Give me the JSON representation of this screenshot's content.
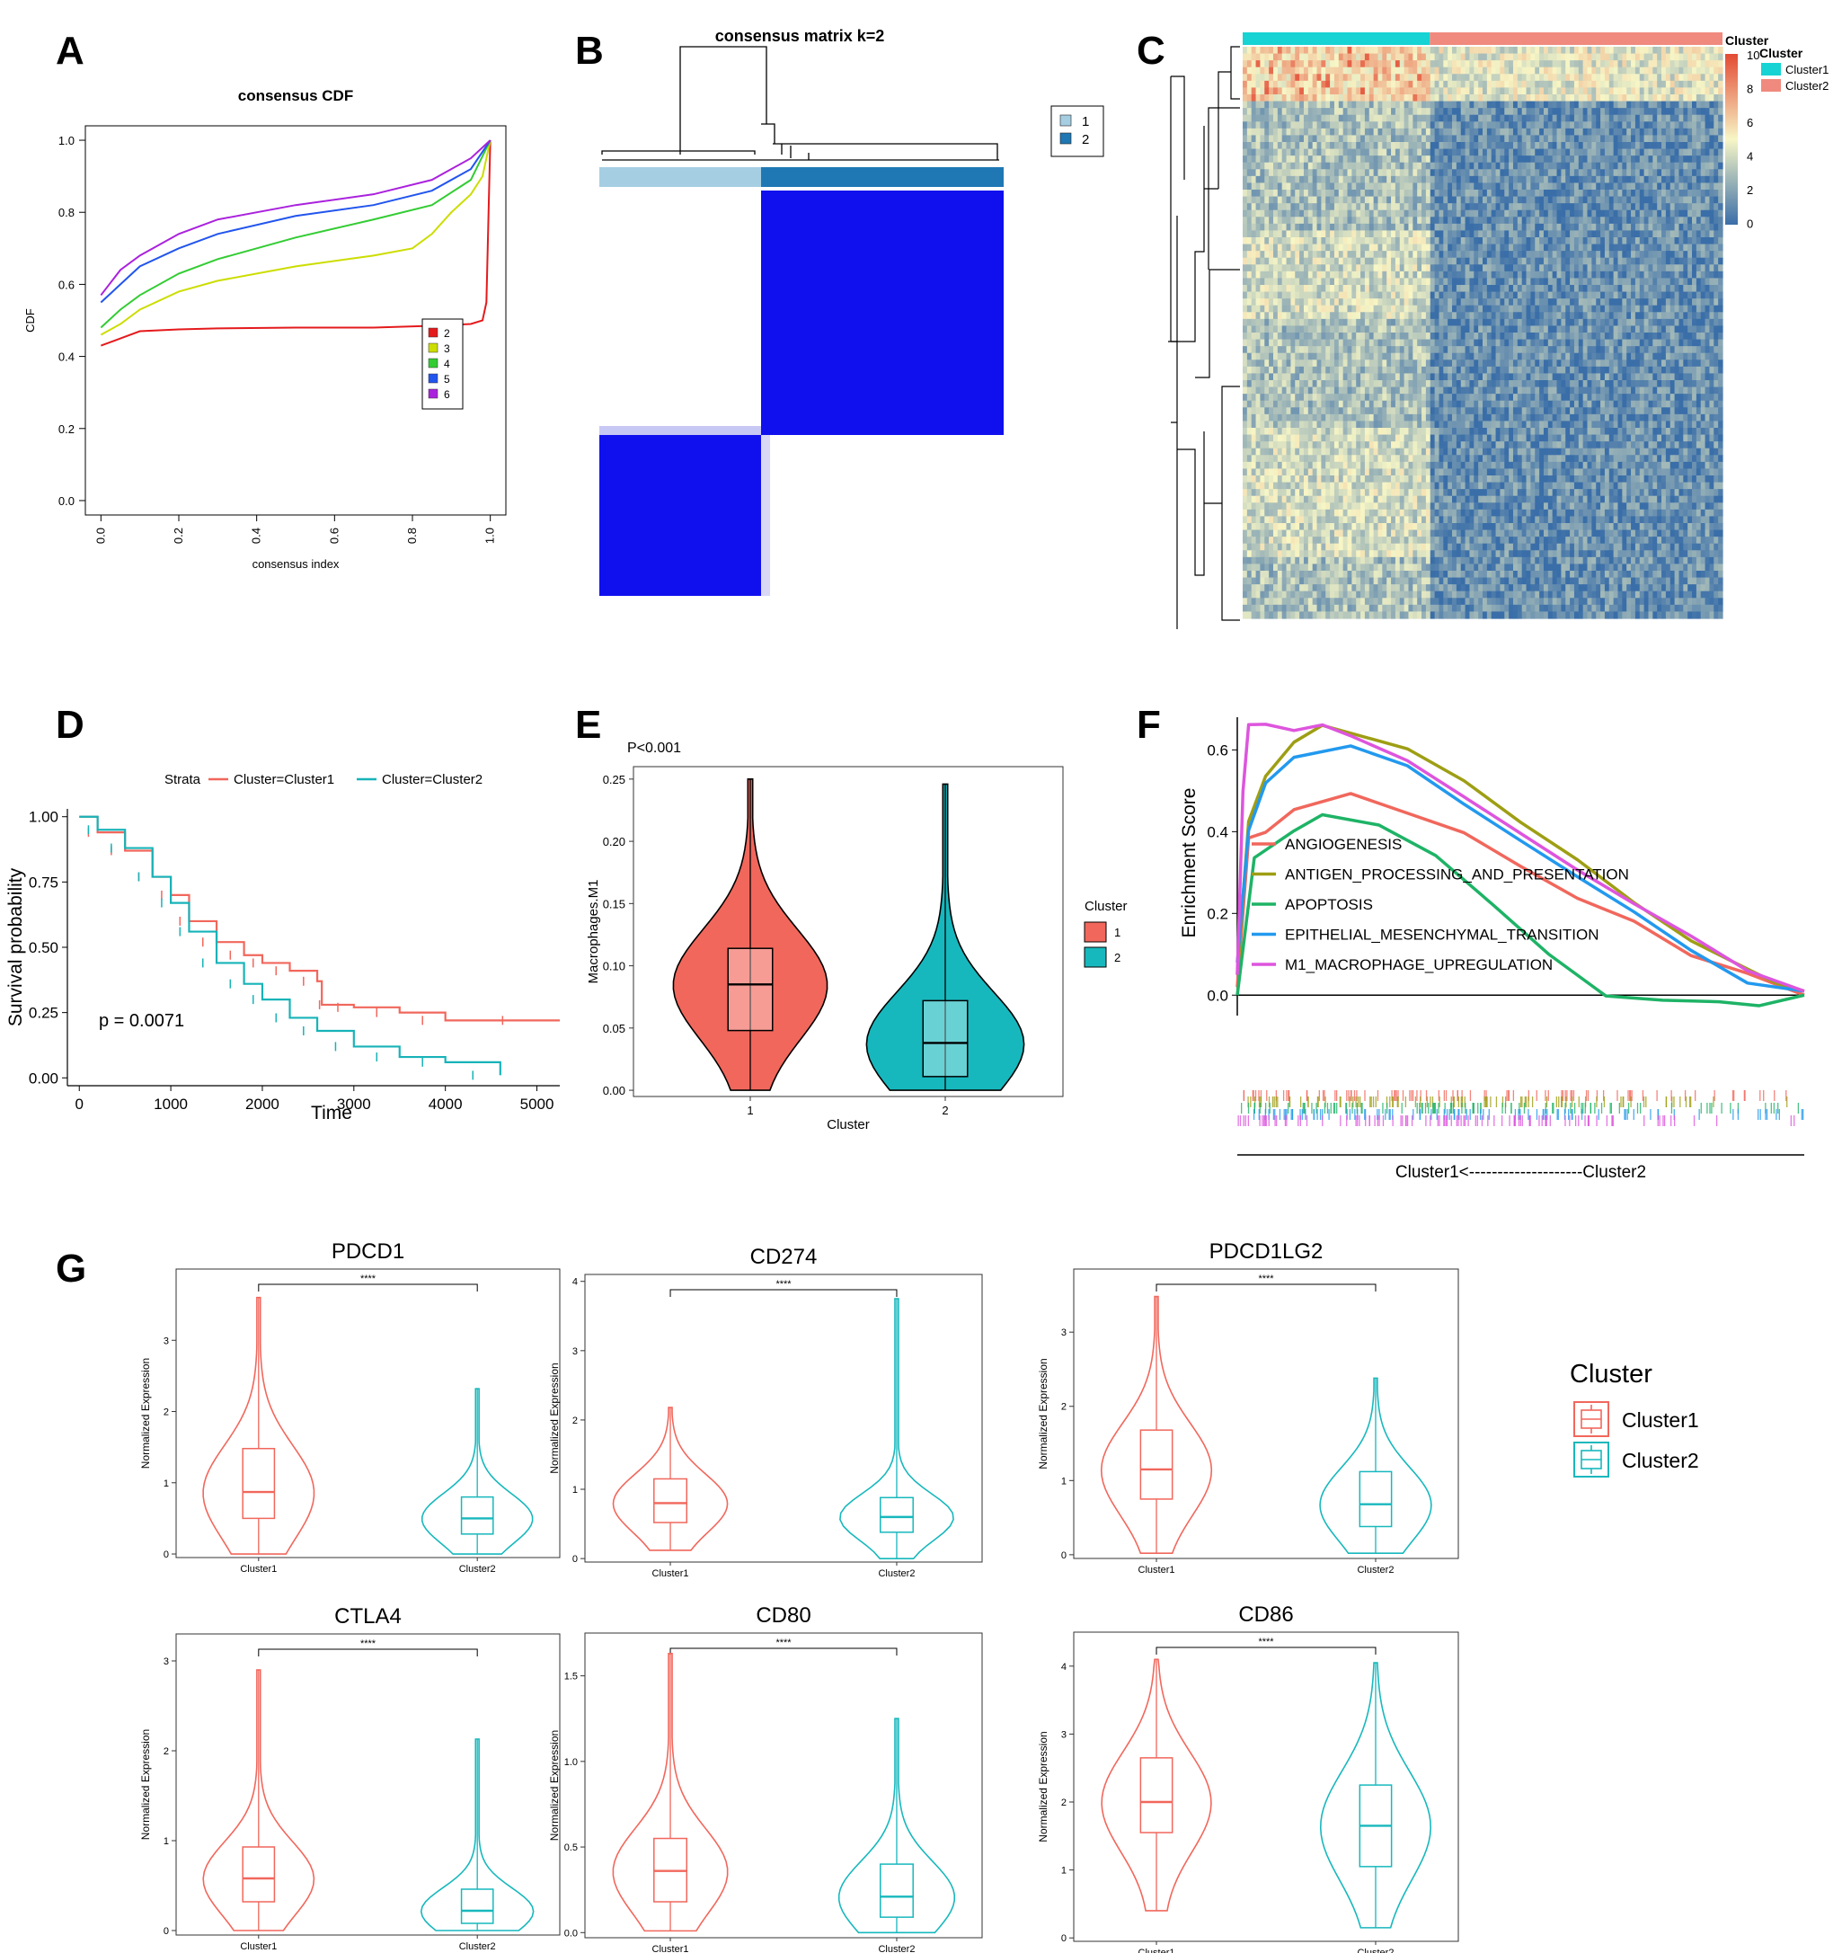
{
  "panel_labels": [
    "A",
    "B",
    "C",
    "D",
    "E",
    "F",
    "G"
  ],
  "chart_data": [
    {
      "panel": "A",
      "type": "line",
      "title": "consensus CDF",
      "xlabel": "consensus index",
      "ylabel": "CDF",
      "xlim": [
        0,
        1
      ],
      "ylim": [
        0,
        1
      ],
      "xticks": [
        "0.0",
        "0.2",
        "0.4",
        "0.6",
        "0.8",
        "1.0"
      ],
      "yticks": [
        "0.0",
        "0.2",
        "0.4",
        "0.6",
        "0.8",
        "1.0"
      ],
      "legend_position": "right",
      "series": [
        {
          "name": "2",
          "color": "#e41a1c",
          "x": [
            0,
            0.05,
            0.1,
            0.2,
            0.3,
            0.5,
            0.7,
            0.85,
            0.95,
            0.98,
            0.99,
            1.0
          ],
          "y": [
            0.43,
            0.45,
            0.47,
            0.475,
            0.478,
            0.48,
            0.48,
            0.485,
            0.49,
            0.5,
            0.55,
            1.0
          ]
        },
        {
          "name": "3",
          "color": "#ccdd00",
          "x": [
            0,
            0.05,
            0.1,
            0.2,
            0.3,
            0.5,
            0.7,
            0.8,
            0.85,
            0.9,
            0.95,
            0.98,
            1.0
          ],
          "y": [
            0.46,
            0.49,
            0.53,
            0.58,
            0.61,
            0.65,
            0.68,
            0.7,
            0.74,
            0.8,
            0.85,
            0.9,
            1.0
          ]
        },
        {
          "name": "4",
          "color": "#33cc33",
          "x": [
            0,
            0.05,
            0.1,
            0.2,
            0.3,
            0.5,
            0.7,
            0.85,
            0.95,
            1.0
          ],
          "y": [
            0.48,
            0.53,
            0.57,
            0.63,
            0.67,
            0.73,
            0.78,
            0.82,
            0.89,
            1.0
          ]
        },
        {
          "name": "5",
          "color": "#2255ee",
          "x": [
            0,
            0.05,
            0.1,
            0.2,
            0.3,
            0.5,
            0.7,
            0.85,
            0.95,
            1.0
          ],
          "y": [
            0.55,
            0.6,
            0.65,
            0.7,
            0.74,
            0.79,
            0.82,
            0.86,
            0.92,
            1.0
          ]
        },
        {
          "name": "6",
          "color": "#aa22dd",
          "x": [
            0,
            0.05,
            0.1,
            0.2,
            0.3,
            0.5,
            0.7,
            0.85,
            0.95,
            1.0
          ],
          "y": [
            0.57,
            0.64,
            0.68,
            0.74,
            0.78,
            0.82,
            0.85,
            0.89,
            0.95,
            1.0
          ]
        }
      ]
    },
    {
      "panel": "B",
      "type": "heatmap",
      "title": "consensus matrix k=2",
      "legend": [
        {
          "name": "1",
          "color": "#a6cee3"
        },
        {
          "name": "2",
          "color": "#1f78b4"
        }
      ],
      "clusters": [
        {
          "name": "1",
          "fraction": 0.4
        },
        {
          "name": "2",
          "fraction": 0.6
        }
      ],
      "block_color": "#1010ee"
    },
    {
      "panel": "C",
      "type": "heatmap",
      "legend_title": "Cluster",
      "annotation_title": "Cluster",
      "annotation": [
        {
          "name": "Cluster1",
          "color": "#17d3d3"
        },
        {
          "name": "Cluster2",
          "color": "#f08a7e"
        }
      ],
      "cluster1_fraction": 0.39,
      "colorbar_ticks": [
        "10",
        "8",
        "6",
        "4",
        "2",
        "0"
      ],
      "colorbar_range": [
        0,
        10
      ],
      "colors": {
        "low": "#3a6ea8",
        "mid": "#f7f6c6",
        "high": "#e34a33"
      }
    },
    {
      "panel": "D",
      "type": "line",
      "xlabel": "Time",
      "ylabel": "Survival probability",
      "legend_title": "Strata",
      "annotation": "p = 0.0071",
      "xticks": [
        "0",
        "1000",
        "2000",
        "3000",
        "4000",
        "5000"
      ],
      "yticks": [
        "0.00",
        "0.25",
        "0.50",
        "0.75",
        "1.00"
      ],
      "xlim": [
        0,
        5250
      ],
      "ylim": [
        0,
        1
      ],
      "series": [
        {
          "name": "Cluster=Cluster1",
          "color": "#f1675c",
          "x": [
            0,
            200,
            500,
            800,
            1000,
            1200,
            1500,
            1800,
            2000,
            2300,
            2600,
            2650,
            3000,
            3500,
            4000,
            5250
          ],
          "y": [
            1.0,
            0.94,
            0.87,
            0.77,
            0.7,
            0.6,
            0.52,
            0.47,
            0.44,
            0.41,
            0.37,
            0.28,
            0.27,
            0.25,
            0.22,
            0.22
          ]
        },
        {
          "name": "Cluster=Cluster2",
          "color": "#17b3b8",
          "x": [
            0,
            200,
            500,
            800,
            1000,
            1200,
            1500,
            1800,
            2000,
            2300,
            2600,
            3000,
            3500,
            4000,
            4600
          ],
          "y": [
            1.0,
            0.95,
            0.88,
            0.77,
            0.67,
            0.56,
            0.44,
            0.36,
            0.3,
            0.23,
            0.18,
            0.12,
            0.08,
            0.06,
            0.01
          ]
        }
      ]
    },
    {
      "panel": "E",
      "type": "violin",
      "annotation": "P<0.001",
      "xlabel": "Cluster",
      "ylabel": "Macrophages.M1",
      "legend_title": "Cluster",
      "categories": [
        "1",
        "2"
      ],
      "ylim": [
        -0.005,
        0.26
      ],
      "yticks": [
        "0.00",
        "0.05",
        "0.10",
        "0.15",
        "0.20",
        "0.25"
      ],
      "groups": [
        {
          "name": "1",
          "color": "#f1675c",
          "min": 0.0,
          "q1": 0.048,
          "median": 0.085,
          "q3": 0.114,
          "max": 0.25
        },
        {
          "name": "2",
          "color": "#17b8bd",
          "min": 0.0,
          "q1": 0.011,
          "median": 0.038,
          "q3": 0.072,
          "max": 0.246
        }
      ]
    },
    {
      "panel": "F",
      "type": "line",
      "ylabel": "Enrichment Score",
      "xlabel": "Cluster1<--------------------Cluster2",
      "ylim": [
        -0.05,
        0.68
      ],
      "yticks": [
        "0.0",
        "0.2",
        "0.4",
        "0.6"
      ],
      "series": [
        {
          "name": "ANGIOGENESIS",
          "color": "#f1675c",
          "x": [
            0,
            0.02,
            0.05,
            0.1,
            0.2,
            0.3,
            0.4,
            0.5,
            0.6,
            0.7,
            0.8,
            0.9,
            1.0
          ],
          "y": [
            0.02,
            0.38,
            0.4,
            0.45,
            0.49,
            0.45,
            0.4,
            0.32,
            0.24,
            0.18,
            0.1,
            0.05,
            0.0
          ]
        },
        {
          "name": "ANTIGEN_PROCESSING_AND_PRESENTATION",
          "color": "#9e9e14",
          "x": [
            0,
            0.02,
            0.05,
            0.1,
            0.15,
            0.3,
            0.4,
            0.5,
            0.6,
            0.7,
            0.8,
            0.9,
            0.95,
            1.0
          ],
          "y": [
            0.05,
            0.42,
            0.54,
            0.62,
            0.66,
            0.6,
            0.52,
            0.42,
            0.33,
            0.23,
            0.13,
            0.06,
            0.03,
            0.01
          ]
        },
        {
          "name": "APOPTOSIS",
          "color": "#1eb366",
          "x": [
            0,
            0.03,
            0.1,
            0.15,
            0.25,
            0.35,
            0.45,
            0.55,
            0.65,
            0.75,
            0.85,
            0.92,
            1.0
          ],
          "y": [
            0.0,
            0.34,
            0.4,
            0.44,
            0.42,
            0.34,
            0.22,
            0.1,
            0.0,
            -0.01,
            -0.02,
            -0.03,
            0.0
          ]
        },
        {
          "name": "EPITHELIAL_MESENCHYMAL_TRANSITION",
          "color": "#2299ee",
          "x": [
            0,
            0.02,
            0.05,
            0.1,
            0.2,
            0.3,
            0.4,
            0.5,
            0.6,
            0.7,
            0.8,
            0.9,
            1.0
          ],
          "y": [
            0.08,
            0.4,
            0.52,
            0.58,
            0.61,
            0.56,
            0.47,
            0.38,
            0.29,
            0.2,
            0.11,
            0.03,
            0.01
          ]
        },
        {
          "name": "M1_MACROPHAGE_UPREGULATION",
          "color": "#dd55dd",
          "x": [
            0,
            0.01,
            0.02,
            0.05,
            0.1,
            0.15,
            0.2,
            0.3,
            0.4,
            0.5,
            0.6,
            0.7,
            0.8,
            0.9,
            1.0
          ],
          "y": [
            0.05,
            0.5,
            0.66,
            0.66,
            0.65,
            0.66,
            0.63,
            0.57,
            0.49,
            0.4,
            0.31,
            0.22,
            0.14,
            0.06,
            0.01
          ]
        }
      ]
    },
    {
      "panel": "G",
      "type": "violin",
      "legend_title": "Cluster",
      "legend": [
        {
          "name": "Cluster1",
          "color": "#f1675c"
        },
        {
          "name": "Cluster2",
          "color": "#17b8bd"
        }
      ],
      "ylabel": "Normalized Expression",
      "categories": [
        "Cluster1",
        "Cluster2"
      ],
      "significance": "****",
      "panels": [
        {
          "title": "PDCD1",
          "ylim": [
            -0.05,
            4.0
          ],
          "yticks": [
            "0",
            "1",
            "2",
            "3"
          ],
          "groups": [
            {
              "min": 0.0,
              "q1": 0.5,
              "median": 0.87,
              "q3": 1.48,
              "max": 3.6
            },
            {
              "min": 0.0,
              "q1": 0.28,
              "median": 0.5,
              "q3": 0.8,
              "max": 2.32
            }
          ]
        },
        {
          "title": "CD274",
          "ylim": [
            -0.05,
            4.1
          ],
          "yticks": [
            "0",
            "1",
            "2",
            "3",
            "4"
          ],
          "groups": [
            {
              "min": 0.12,
              "q1": 0.52,
              "median": 0.8,
              "q3": 1.15,
              "max": 2.18
            },
            {
              "min": 0.0,
              "q1": 0.38,
              "median": 0.6,
              "q3": 0.88,
              "max": 3.75
            }
          ]
        },
        {
          "title": "PDCD1LG2",
          "ylim": [
            -0.05,
            3.85
          ],
          "yticks": [
            "0",
            "1",
            "2",
            "3"
          ],
          "groups": [
            {
              "min": 0.02,
              "q1": 0.75,
              "median": 1.15,
              "q3": 1.68,
              "max": 3.48
            },
            {
              "min": 0.02,
              "q1": 0.38,
              "median": 0.68,
              "q3": 1.12,
              "max": 2.38
            }
          ]
        },
        {
          "title": "CTLA4",
          "ylim": [
            -0.05,
            3.3
          ],
          "yticks": [
            "0",
            "1",
            "2",
            "3"
          ],
          "groups": [
            {
              "min": 0.0,
              "q1": 0.32,
              "median": 0.58,
              "q3": 0.93,
              "max": 2.9
            },
            {
              "min": 0.0,
              "q1": 0.08,
              "median": 0.22,
              "q3": 0.46,
              "max": 2.13
            }
          ]
        },
        {
          "title": "CD80",
          "ylim": [
            -0.03,
            1.75
          ],
          "yticks": [
            "0.0",
            "0.5",
            "1.0",
            "1.5"
          ],
          "groups": [
            {
              "min": 0.01,
              "q1": 0.18,
              "median": 0.36,
              "q3": 0.55,
              "max": 1.63
            },
            {
              "min": 0.0,
              "q1": 0.09,
              "median": 0.21,
              "q3": 0.4,
              "max": 1.25
            }
          ]
        },
        {
          "title": "CD86",
          "ylim": [
            -0.05,
            4.5
          ],
          "yticks": [
            "0",
            "1",
            "2",
            "3",
            "4"
          ],
          "groups": [
            {
              "min": 0.4,
              "q1": 1.55,
              "median": 2.0,
              "q3": 2.65,
              "max": 4.1
            },
            {
              "min": 0.15,
              "q1": 1.05,
              "median": 1.65,
              "q3": 2.25,
              "max": 4.05
            }
          ]
        }
      ]
    }
  ]
}
